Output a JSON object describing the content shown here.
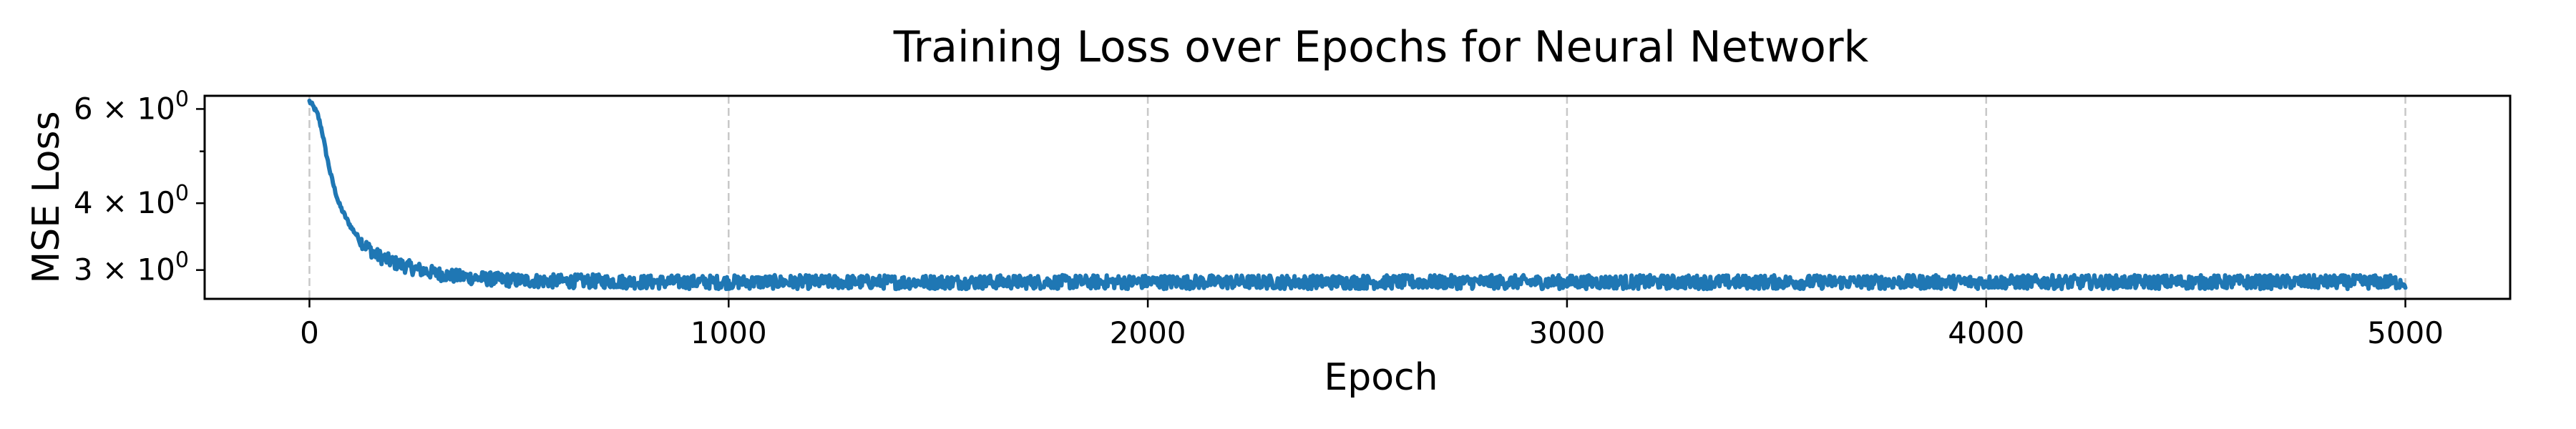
{
  "chart_data": {
    "type": "line",
    "title": "Training Loss over Epochs for Neural Network",
    "xlabel": "Epoch",
    "ylabel": "MSE Loss",
    "xlim": [
      -250,
      5250
    ],
    "ylim": [
      2.65,
      6.35
    ],
    "yscale": "log",
    "grid": "x-axis only, dashed",
    "legend": "none",
    "x_ticks": [
      {
        "value": 0,
        "label": "0"
      },
      {
        "value": 1000,
        "label": "1000"
      },
      {
        "value": 2000,
        "label": "2000"
      },
      {
        "value": 3000,
        "label": "3000"
      },
      {
        "value": 4000,
        "label": "4000"
      },
      {
        "value": 5000,
        "label": "5000"
      }
    ],
    "y_ticks": [
      {
        "value": 3,
        "mantissa": "3",
        "base": "10",
        "exponent": "0"
      },
      {
        "value": 4,
        "mantissa": "4",
        "base": "10",
        "exponent": "0"
      },
      {
        "value": 6,
        "mantissa": "6",
        "base": "10",
        "exponent": "0"
      }
    ],
    "y_minor_ticks": [
      5
    ],
    "series": [
      {
        "color": "#1f77b4",
        "noise_amplitude": 0.03,
        "x": [
          0,
          10,
          20,
          30,
          40,
          50,
          60,
          70,
          80,
          90,
          100,
          120,
          140,
          160,
          180,
          200,
          250,
          300,
          350,
          400,
          450,
          500,
          600,
          700,
          800,
          1000,
          1500,
          2000,
          2500,
          3000,
          3500,
          4000,
          4500,
          5000
        ],
        "values": [
          6.2,
          6.05,
          5.85,
          5.45,
          4.95,
          4.55,
          4.25,
          4.0,
          3.85,
          3.72,
          3.6,
          3.42,
          3.3,
          3.2,
          3.15,
          3.1,
          3.02,
          2.96,
          2.92,
          2.9,
          2.88,
          2.87,
          2.86,
          2.86,
          2.85,
          2.85,
          2.85,
          2.85,
          2.85,
          2.85,
          2.85,
          2.85,
          2.85,
          2.85
        ]
      }
    ]
  }
}
